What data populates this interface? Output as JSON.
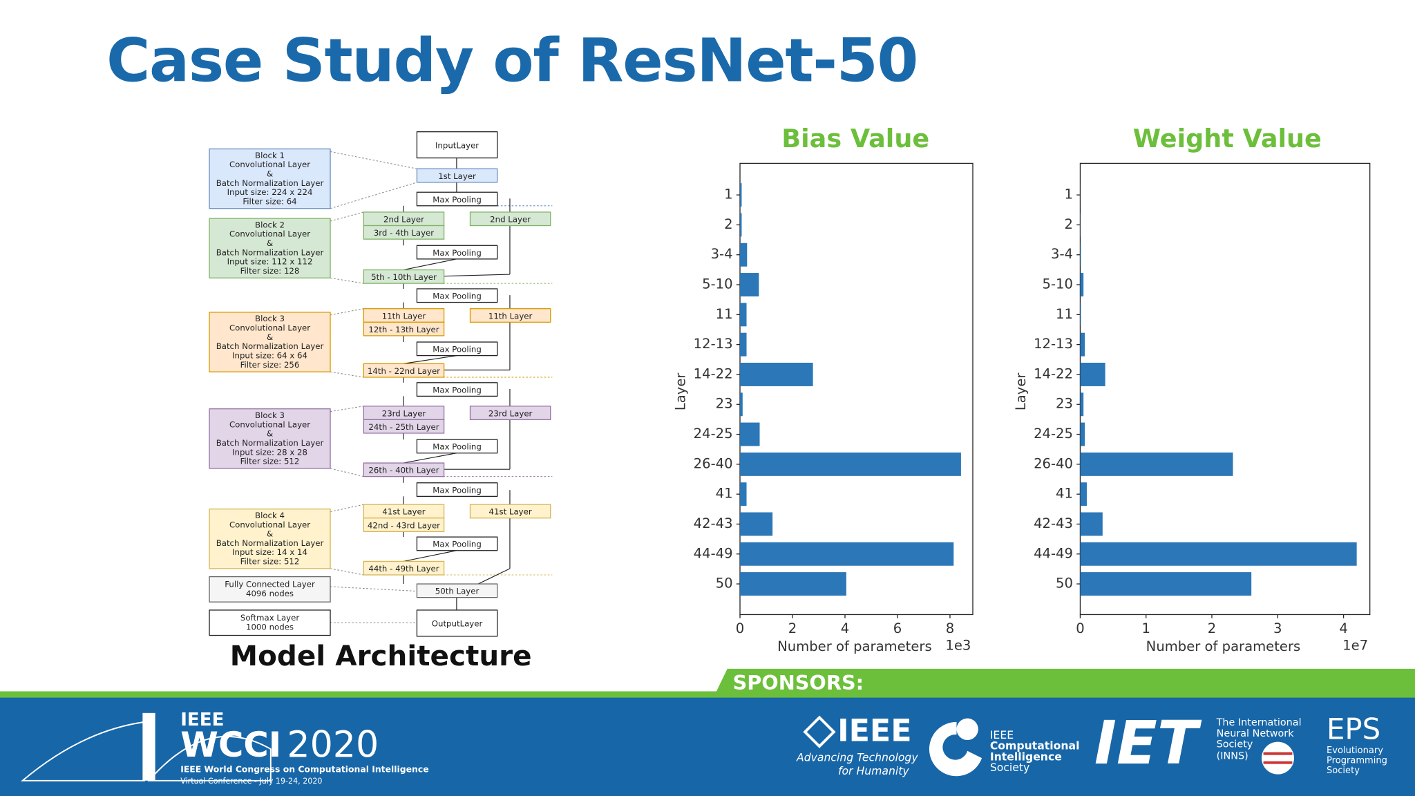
{
  "title": "Case Study of ResNet-50",
  "architecture": {
    "caption": "Model Architecture",
    "blocks": [
      {
        "lines": [
          "Block 1",
          "Convolutional Layer",
          "&",
          "Batch Normalization Layer",
          "Input size: 224 x 224",
          "Filter size: 64"
        ]
      },
      {
        "lines": [
          "Block 2",
          "Convolutional Layer",
          "&",
          "Batch Normalization Layer",
          "Input size: 112 x 112",
          "Filter size: 128"
        ]
      },
      {
        "lines": [
          "Block 3",
          "Convolutional Layer",
          "&",
          "Batch Normalization Layer",
          "Input size: 64 x 64",
          "Filter size: 256"
        ]
      },
      {
        "lines": [
          "Block 3",
          "Convolutional Layer",
          "&",
          "Batch Normalization Layer",
          "Input size: 28 x 28",
          "Filter size: 512"
        ]
      },
      {
        "lines": [
          "Block 4",
          "Convolutional Layer",
          "&",
          "Batch Normalization Layer",
          "Input size: 14 x 14",
          "Filter size: 512"
        ]
      },
      {
        "lines": [
          "Fully Connected Layer",
          "4096 nodes"
        ]
      },
      {
        "lines": [
          "Softmax Layer",
          "1000 nodes"
        ]
      }
    ],
    "nodes": [
      {
        "label": "InputLayer"
      },
      {
        "label": "1st Layer"
      },
      {
        "label": "Max Pooling"
      },
      {
        "label": "2nd Layer"
      },
      {
        "label": "3rd - 4th Layer"
      },
      {
        "label": "2nd Layer"
      },
      {
        "label": "Max Pooling"
      },
      {
        "label": "5th - 10th Layer"
      },
      {
        "label": "Max Pooling"
      },
      {
        "label": "11th Layer"
      },
      {
        "label": "12th - 13th Layer"
      },
      {
        "label": "11th Layer"
      },
      {
        "label": "Max Pooling"
      },
      {
        "label": "14th - 22nd Layer"
      },
      {
        "label": "Max Pooling"
      },
      {
        "label": "23rd Layer"
      },
      {
        "label": "24th - 25th Layer"
      },
      {
        "label": "23rd Layer"
      },
      {
        "label": "Max Pooling"
      },
      {
        "label": "26th - 40th Layer"
      },
      {
        "label": "Max Pooling"
      },
      {
        "label": "41st Layer"
      },
      {
        "label": "42nd - 43rd Layer"
      },
      {
        "label": "41st Layer"
      },
      {
        "label": "Max Pooling"
      },
      {
        "label": "44th - 49th Layer"
      },
      {
        "label": "50th Layer"
      },
      {
        "label": "OutputLayer"
      }
    ]
  },
  "chart_data": [
    {
      "type": "barh",
      "title": "Bias Value",
      "x_label": "Number of parameters",
      "x_offset_label": "1e3",
      "y_label": "Layer",
      "categories": [
        "1",
        "2",
        "3-4",
        "5-10",
        "11",
        "12-13",
        "14-22",
        "23",
        "24-25",
        "26-40",
        "41",
        "42-43",
        "44-49",
        "50"
      ],
      "values": [
        0.064,
        0.064,
        0.27,
        0.72,
        0.25,
        0.25,
        2.78,
        0.1,
        0.75,
        8.42,
        0.25,
        1.24,
        8.14,
        4.05
      ],
      "color": "#2b77b7",
      "xlim": [
        0,
        8.87
      ],
      "xticks": [
        0,
        2,
        4,
        6,
        8
      ]
    },
    {
      "type": "barh",
      "title": "Weight Value",
      "x_label": "Number of parameters",
      "x_offset_label": "1e7",
      "y_label": "Layer",
      "categories": [
        "1",
        "2",
        "3-4",
        "5-10",
        "11",
        "12-13",
        "14-22",
        "23",
        "24-25",
        "26-40",
        "41",
        "42-43",
        "44-49",
        "50"
      ],
      "values": [
        0.001,
        0.004,
        0.01,
        0.05,
        0.01,
        0.07,
        0.38,
        0.05,
        0.07,
        2.32,
        0.1,
        0.34,
        4.2,
        2.6
      ],
      "color": "#2b77b7",
      "xlim": [
        0,
        4.4
      ],
      "xticks": [
        0,
        1,
        2,
        3,
        4
      ]
    }
  ],
  "footer": {
    "sponsors_label": "SPONSORS:",
    "event": {
      "org": "IEEE",
      "name": "WCCI",
      "year": "2020",
      "full_name": "IEEE World Congress on Computational Intelligence",
      "subtitle": "Virtual Conference - July 19-24, 2020"
    },
    "sponsors": [
      {
        "lines": [
          "IEEE",
          "Advancing Technology",
          "for Humanity"
        ]
      },
      {
        "lines": [
          "IEEE",
          "Computational",
          "Intelligence",
          "Society"
        ]
      },
      {
        "lines": [
          "IET"
        ]
      },
      {
        "lines": [
          "The International",
          "Neural Network",
          "Society",
          "(INNS)"
        ]
      },
      {
        "lines": [
          "EPS",
          "Evolutionary",
          "Programming",
          "Society"
        ]
      }
    ]
  }
}
